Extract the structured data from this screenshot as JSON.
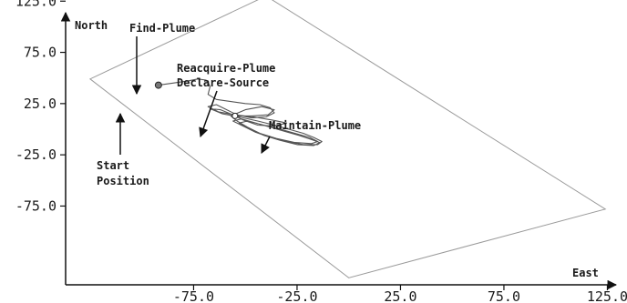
{
  "chart_data": {
    "type": "line",
    "x_axis": {
      "label": "East",
      "range": [
        -125,
        140
      ],
      "ticks": [
        {
          "value": -75,
          "label": "-75.0"
        },
        {
          "value": -25,
          "label": "-25.0"
        },
        {
          "value": 25,
          "label": "25.0"
        },
        {
          "value": 75,
          "label": "75.0"
        },
        {
          "value": 125,
          "label": "125.0"
        }
      ]
    },
    "y_axis": {
      "label": "North",
      "range": [
        -138,
        140
      ],
      "ticks": [
        {
          "value": 125,
          "label": "125.0"
        },
        {
          "value": 75,
          "label": "75.0"
        },
        {
          "value": 25,
          "label": "25.0"
        },
        {
          "value": -25,
          "label": "-25.0"
        },
        {
          "value": -75,
          "label": "-75.0"
        }
      ]
    },
    "grid": false,
    "search_area_boundary": [
      [
        -40,
        130
      ],
      [
        124,
        -78
      ],
      [
        0,
        -145
      ],
      [
        -125,
        49
      ]
    ],
    "start_position": [
      -92,
      43
    ],
    "source_marker": [
      -55,
      13
    ],
    "trajectory": [
      [
        -92,
        43
      ],
      [
        -85,
        45
      ],
      [
        -78,
        47
      ],
      [
        -73,
        49
      ],
      [
        -69,
        48
      ],
      [
        -67,
        42
      ],
      [
        -68,
        34
      ],
      [
        -64,
        29
      ],
      [
        -57,
        27
      ],
      [
        -50,
        25
      ],
      [
        -43,
        24
      ],
      [
        -38,
        21
      ],
      [
        -36,
        16
      ],
      [
        -40,
        12
      ],
      [
        -47,
        11
      ],
      [
        -54,
        14
      ],
      [
        -60,
        20
      ],
      [
        -64,
        24
      ],
      [
        -68,
        22
      ],
      [
        -63,
        17
      ],
      [
        -55,
        14
      ],
      [
        -46,
        12
      ],
      [
        -37,
        9
      ],
      [
        -30,
        6
      ],
      [
        -36,
        3
      ],
      [
        -44,
        4
      ],
      [
        -51,
        9
      ],
      [
        -56,
        14
      ],
      [
        -62,
        19
      ],
      [
        -67,
        20
      ],
      [
        -61,
        15
      ],
      [
        -53,
        12
      ],
      [
        -44,
        8
      ],
      [
        -36,
        4
      ],
      [
        -29,
        0
      ],
      [
        -22,
        -4
      ],
      [
        -17,
        -8
      ],
      [
        -13,
        -12
      ],
      [
        -15,
        -15
      ],
      [
        -22,
        -15
      ],
      [
        -30,
        -12
      ],
      [
        -38,
        -8
      ],
      [
        -45,
        -3
      ],
      [
        -51,
        3
      ],
      [
        -56,
        8
      ],
      [
        -52,
        10
      ],
      [
        -45,
        6
      ],
      [
        -38,
        2
      ],
      [
        -31,
        -2
      ],
      [
        -24,
        -6
      ],
      [
        -18,
        -10
      ],
      [
        -14,
        -13
      ],
      [
        -17,
        -16
      ],
      [
        -25,
        -15
      ],
      [
        -33,
        -11
      ],
      [
        -41,
        -6
      ],
      [
        -48,
        0
      ],
      [
        -53,
        6
      ],
      [
        -49,
        8
      ],
      [
        -41,
        4
      ],
      [
        -33,
        0
      ],
      [
        -26,
        -4
      ],
      [
        -19,
        -8
      ],
      [
        -15,
        -12
      ],
      [
        -18,
        -14
      ],
      [
        -26,
        -13
      ],
      [
        -35,
        -9
      ],
      [
        -43,
        -4
      ],
      [
        -49,
        2
      ],
      [
        -54,
        8
      ],
      [
        -57,
        13
      ],
      [
        -50,
        19
      ],
      [
        -42,
        22
      ],
      [
        -36,
        19
      ],
      [
        -39,
        14
      ],
      [
        -47,
        13
      ],
      [
        -55,
        13
      ]
    ],
    "annotations": [
      {
        "text": "Find-Plume",
        "arrow_to": [
          -72,
          54
        ]
      },
      {
        "text": "Reacquire-Plume",
        "arrow_to": [
          -58,
          19
        ]
      },
      {
        "text": "Declare-Source",
        "arrow_to": [
          -58,
          19
        ]
      },
      {
        "text": "Maintain-Plume",
        "arrow_to": [
          -27,
          -1
        ]
      },
      {
        "text": "Start",
        "arrow_to": [
          -92,
          37
        ]
      },
      {
        "text": "Position",
        "arrow_to": null
      }
    ]
  }
}
